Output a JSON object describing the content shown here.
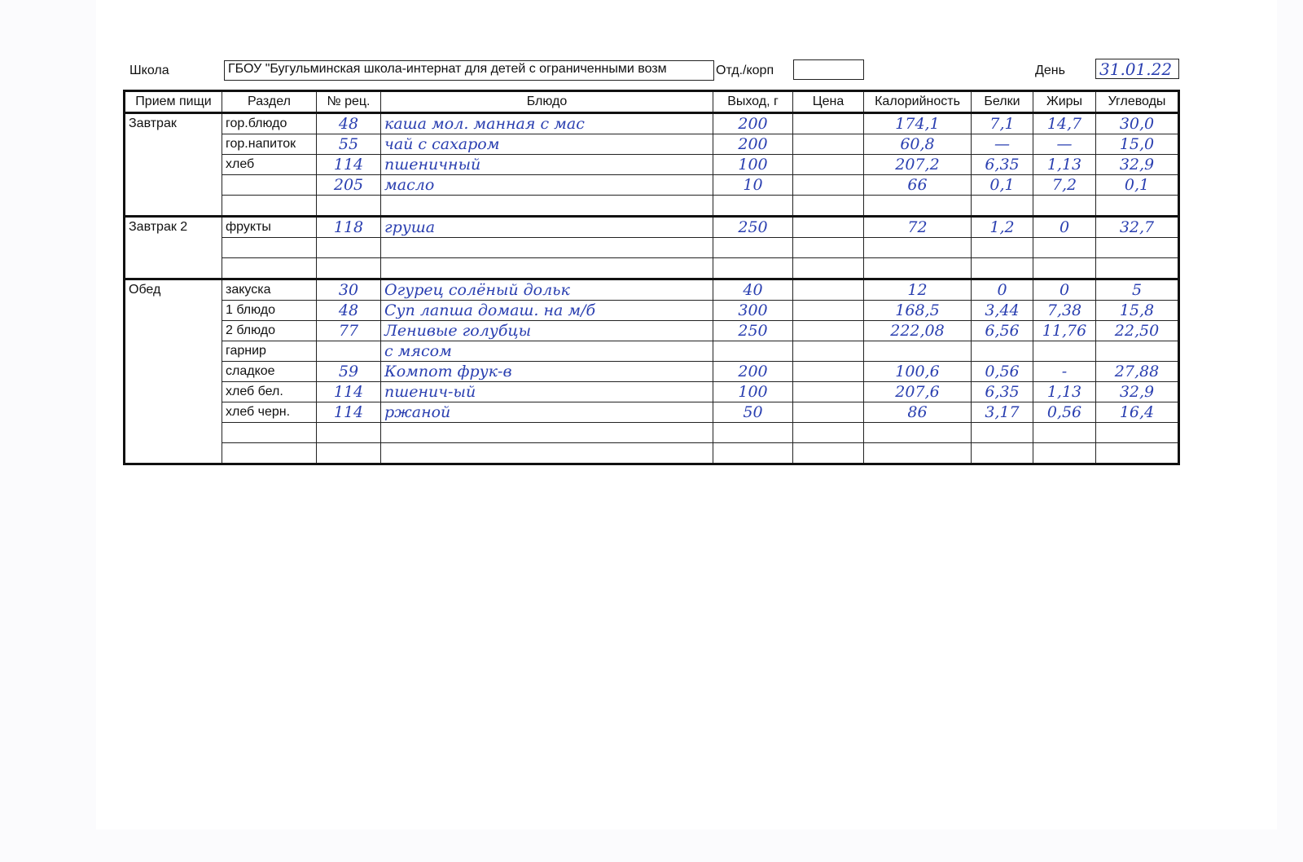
{
  "header": {
    "school_label": "Школа",
    "school_value": "ГБОУ \"Бугульминская школа-интернат для детей с ограниченными возм",
    "dept_label": "Отд./корп",
    "dept_value": "",
    "day_label": "День",
    "day_value": "31.01.22"
  },
  "columns": [
    "Прием пищи",
    "Раздел",
    "№ рец.",
    "Блюдо",
    "Выход, г",
    "Цена",
    "Калорийность",
    "Белки",
    "Жиры",
    "Углеводы"
  ],
  "meals": [
    {
      "name": "Завтрак",
      "rows": [
        {
          "section": "гор.блюдо",
          "recipe": "48",
          "dish": "каша мол. манная с мас",
          "yield": "200",
          "price": "",
          "kcal": "174,1",
          "protein": "7,1",
          "fat": "14,7",
          "carbs": "30,0"
        },
        {
          "section": "гор.напиток",
          "recipe": "55",
          "dish": "чай с сахаром",
          "yield": "200",
          "price": "",
          "kcal": "60,8",
          "protein": "—",
          "fat": "—",
          "carbs": "15,0"
        },
        {
          "section": "хлеб",
          "recipe": "114",
          "dish": "пшеничный",
          "yield": "100",
          "price": "",
          "kcal": "207,2",
          "protein": "6,35",
          "fat": "1,13",
          "carbs": "32,9"
        },
        {
          "section": "",
          "recipe": "205",
          "dish": "масло",
          "yield": "10",
          "price": "",
          "kcal": "66",
          "protein": "0,1",
          "fat": "7,2",
          "carbs": "0,1"
        },
        {
          "section": "",
          "recipe": "",
          "dish": "",
          "yield": "",
          "price": "",
          "kcal": "",
          "protein": "",
          "fat": "",
          "carbs": ""
        }
      ]
    },
    {
      "name": "Завтрак 2",
      "rows": [
        {
          "section": "фрукты",
          "recipe": "118",
          "dish": "груша",
          "yield": "250",
          "price": "",
          "kcal": "72",
          "protein": "1,2",
          "fat": "0",
          "carbs": "32,7"
        },
        {
          "section": "",
          "recipe": "",
          "dish": "",
          "yield": "",
          "price": "",
          "kcal": "",
          "protein": "",
          "fat": "",
          "carbs": ""
        },
        {
          "section": "",
          "recipe": "",
          "dish": "",
          "yield": "",
          "price": "",
          "kcal": "",
          "protein": "",
          "fat": "",
          "carbs": ""
        }
      ]
    },
    {
      "name": "Обед",
      "rows": [
        {
          "section": "закуска",
          "recipe": "30",
          "dish": "Огурец солёный дольк",
          "yield": "40",
          "price": "",
          "kcal": "12",
          "protein": "0",
          "fat": "0",
          "carbs": "5"
        },
        {
          "section": "1 блюдо",
          "recipe": "48",
          "dish": "Суп лапша домаш. на м/б",
          "yield": "300",
          "price": "",
          "kcal": "168,5",
          "protein": "3,44",
          "fat": "7,38",
          "carbs": "15,8"
        },
        {
          "section": "2 блюдо",
          "recipe": "77",
          "dish": "Ленивые голубцы",
          "yield": "250",
          "price": "",
          "kcal": "222,08",
          "protein": "6,56",
          "fat": "11,76",
          "carbs": "22,50"
        },
        {
          "section": "гарнир",
          "recipe": "",
          "dish": "с мясом",
          "yield": "",
          "price": "",
          "kcal": "",
          "protein": "",
          "fat": "",
          "carbs": ""
        },
        {
          "section": "сладкое",
          "recipe": "59",
          "dish": "Компот фрук-в",
          "yield": "200",
          "price": "",
          "kcal": "100,6",
          "protein": "0,56",
          "fat": "-",
          "carbs": "27,88"
        },
        {
          "section": "хлеб бел.",
          "recipe": "114",
          "dish": "пшенич-ый",
          "yield": "100",
          "price": "",
          "kcal": "207,6",
          "protein": "6,35",
          "fat": "1,13",
          "carbs": "32,9"
        },
        {
          "section": "хлеб черн.",
          "recipe": "114",
          "dish": "ржаной",
          "yield": "50",
          "price": "",
          "kcal": "86",
          "protein": "3,17",
          "fat": "0,56",
          "carbs": "16,4"
        },
        {
          "section": "",
          "recipe": "",
          "dish": "",
          "yield": "",
          "price": "",
          "kcal": "",
          "protein": "",
          "fat": "",
          "carbs": ""
        },
        {
          "section": "",
          "recipe": "",
          "dish": "",
          "yield": "",
          "price": "",
          "kcal": "",
          "protein": "",
          "fat": "",
          "carbs": ""
        }
      ]
    }
  ]
}
